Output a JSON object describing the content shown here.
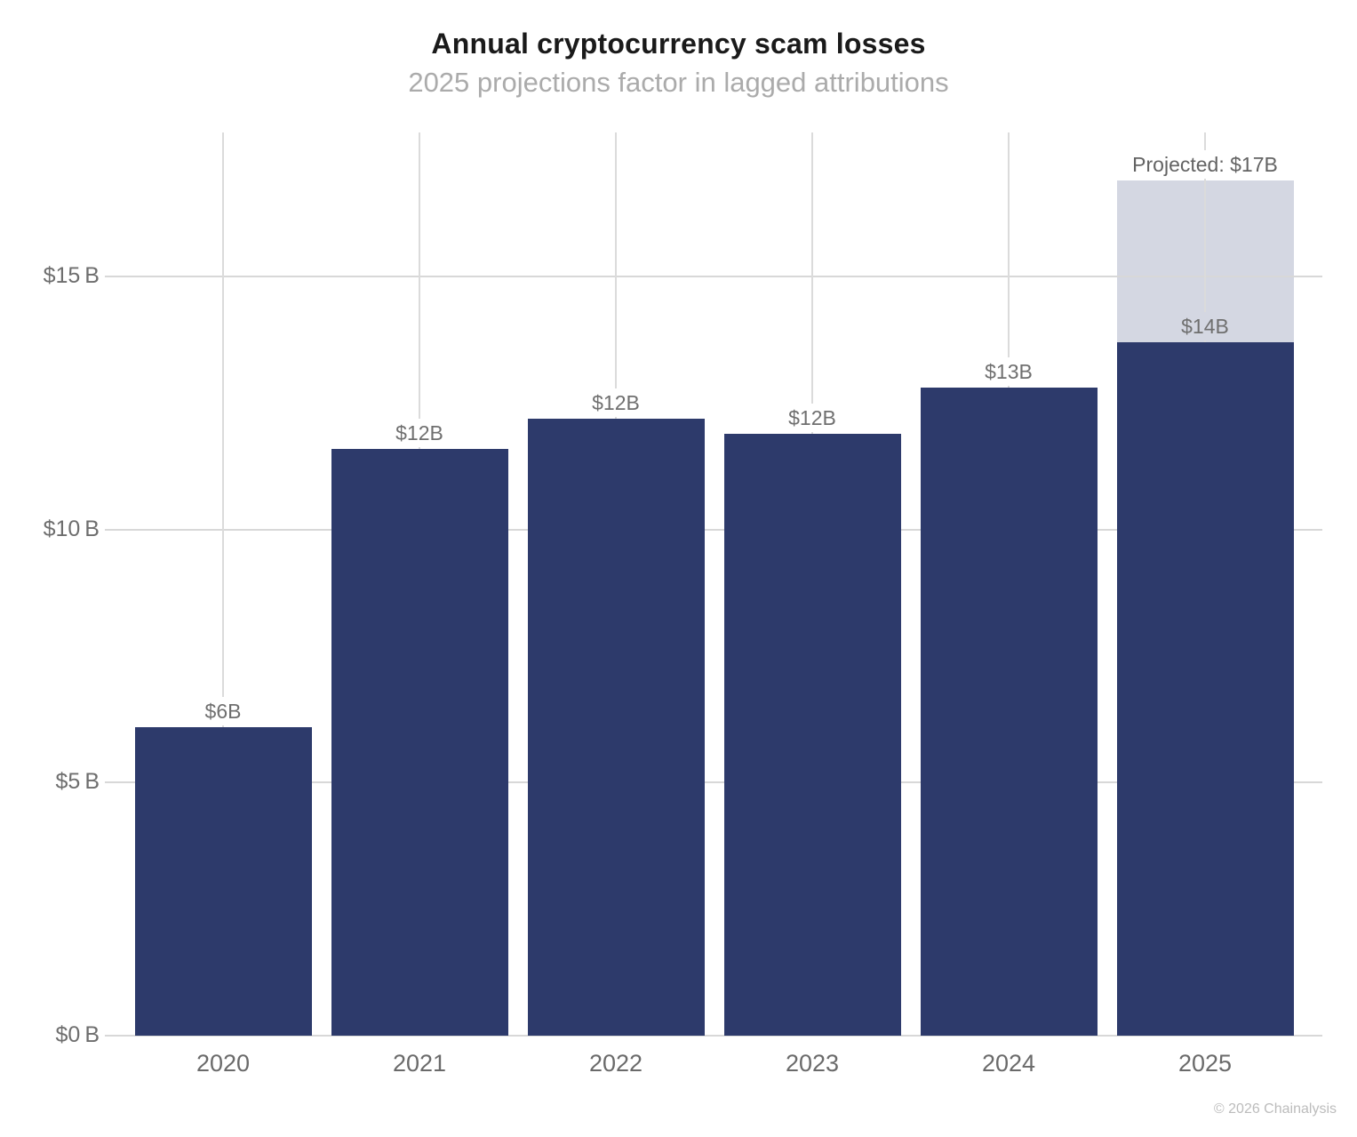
{
  "title": "Annual cryptocurrency scam losses",
  "subtitle": "2025 projections factor in lagged attributions",
  "footer": "© 2026 Chainalysis",
  "colors": {
    "bar": "#2d3a6b",
    "projected": "#d4d7e2",
    "grid_horizontal": "#d8d8d8",
    "grid_vertical": "#dbdbdb",
    "title_text": "#1a1a1a",
    "subtitle_text": "#ababab",
    "axis_text": "#6e6e6e",
    "value_label_text": "#6f6f6f",
    "footer_text": "#bcbcbc"
  },
  "chart_data": {
    "type": "bar",
    "title": "Annual cryptocurrency scam losses",
    "subtitle": "2025 projections factor in lagged attributions",
    "categories": [
      "2020",
      "2021",
      "2022",
      "2023",
      "2024",
      "2025"
    ],
    "series": [
      {
        "name": "actual",
        "values": [
          6.1,
          11.6,
          12.2,
          11.9,
          12.8,
          13.7
        ]
      },
      {
        "name": "projected_additional",
        "values": [
          0,
          0,
          0,
          0,
          0,
          3.2
        ]
      }
    ],
    "bar_labels": [
      "$6B",
      "$12B",
      "$12B",
      "$12B",
      "$13B",
      "$14B"
    ],
    "projected_annotation": {
      "category": "2025",
      "label": "Projected: $17B",
      "projected_total": 16.9
    },
    "y_ticks": [
      {
        "value": 0,
        "label": "$0 B"
      },
      {
        "value": 5,
        "label": "$5 B"
      },
      {
        "value": 10,
        "label": "$10 B"
      },
      {
        "value": 15,
        "label": "$15 B"
      }
    ],
    "ylim": [
      0,
      17.85
    ],
    "xlabel": "",
    "ylabel": "",
    "grid": true,
    "legend": false
  }
}
